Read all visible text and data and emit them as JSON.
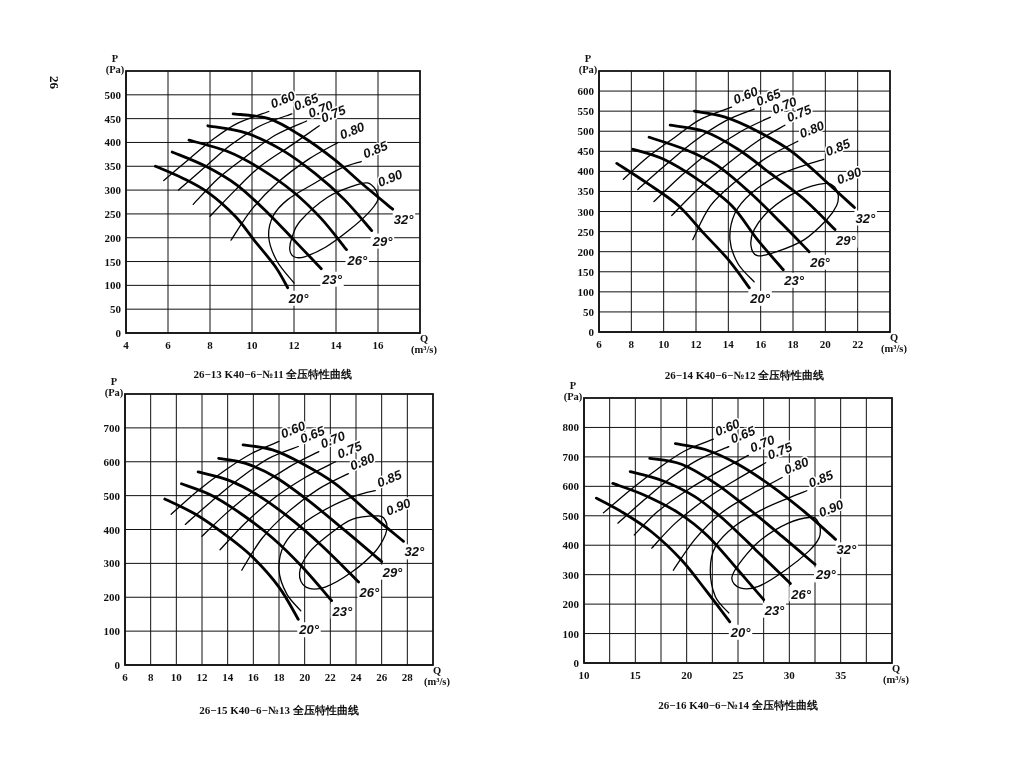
{
  "chart_data": [
    {
      "type": "line",
      "title": "26−13 K40−6−№11 全压特性曲线",
      "xlabel": "Q\n(m³/s)",
      "ylabel": "P\n(Pa)",
      "annotations": [
        "26"
      ],
      "grid": true,
      "xlim": [
        4,
        18
      ],
      "xticks": [
        4,
        6,
        8,
        10,
        12,
        14,
        16
      ],
      "ylim": [
        0,
        550
      ],
      "yticks": [
        0,
        50,
        100,
        150,
        200,
        250,
        300,
        350,
        400,
        450,
        500
      ],
      "series": [
        {
          "name": "20°",
          "color": "#000000",
          "x": [
            5.4,
            6.7,
            7.9,
            9.2,
            10.1,
            11.1,
            11.7
          ],
          "values": [
            350,
            325,
            295,
            245,
            195,
            140,
            95
          ]
        },
        {
          "name": "23°",
          "color": "#000000",
          "x": [
            6.2,
            7.8,
            9.3,
            10.8,
            12.0,
            13.3
          ],
          "values": [
            380,
            350,
            310,
            250,
            195,
            135
          ]
        },
        {
          "name": "26°",
          "color": "#000000",
          "x": [
            7.0,
            8.9,
            10.4,
            12.0,
            13.3,
            14.5
          ],
          "values": [
            405,
            380,
            345,
            295,
            240,
            175
          ]
        },
        {
          "name": "29°",
          "color": "#000000",
          "x": [
            7.9,
            9.7,
            11.4,
            13.0,
            14.4,
            15.7
          ],
          "values": [
            435,
            420,
            385,
            335,
            280,
            215
          ]
        },
        {
          "name": "32°",
          "color": "#000000",
          "x": [
            9.1,
            10.8,
            12.3,
            13.9,
            15.2,
            16.7
          ],
          "values": [
            460,
            450,
            415,
            365,
            315,
            260
          ]
        },
        {
          "name": "0.60",
          "color": "#000000",
          "x": [
            5.8,
            7.0,
            8.1,
            9.3,
            10.8
          ],
          "values": [
            320,
            365,
            405,
            440,
            465
          ]
        },
        {
          "name": "0.65",
          "color": "#000000",
          "x": [
            6.5,
            7.8,
            9.0,
            10.4,
            11.9
          ],
          "values": [
            300,
            350,
            395,
            435,
            460
          ]
        },
        {
          "name": "0.70",
          "color": "#000000",
          "x": [
            7.2,
            8.4,
            9.7,
            11.1,
            12.6
          ],
          "values": [
            270,
            325,
            370,
            415,
            445
          ]
        },
        {
          "name": "0.75",
          "color": "#000000",
          "x": [
            8.0,
            9.2,
            10.4,
            11.9,
            13.2
          ],
          "values": [
            245,
            300,
            350,
            395,
            435
          ]
        },
        {
          "name": "0.80",
          "color": "#000000",
          "x": [
            9.0,
            10.0,
            11.2,
            12.7,
            14.1
          ],
          "values": [
            195,
            260,
            315,
            365,
            400
          ]
        },
        {
          "name": "0.85",
          "color": "#000000",
          "x": [
            12.0,
            11.2,
            10.8,
            11.0,
            11.7,
            13.0,
            14.2,
            15.2
          ],
          "values": [
            105,
            150,
            200,
            245,
            280,
            315,
            345,
            360
          ]
        },
        {
          "name": "0.90",
          "color": "#000000",
          "x": [
            16.0,
            15.9,
            15.5,
            14.9,
            13.6,
            12.3,
            11.9,
            11.8,
            12.0,
            12.5,
            13.5,
            14.6,
            15.5,
            16.0,
            15.9
          ],
          "values": [
            280,
            300,
            315,
            310,
            285,
            235,
            200,
            175,
            160,
            160,
            180,
            215,
            250,
            280,
            300
          ]
        }
      ]
    },
    {
      "type": "line",
      "title": "26−14 K40−6−№12 全压特性曲线",
      "xlabel": "Q\n(m³/s)",
      "ylabel": "P\n(Pa)",
      "grid": true,
      "xlim": [
        6,
        24
      ],
      "xticks": [
        6,
        8,
        10,
        12,
        14,
        16,
        18,
        20,
        22
      ],
      "ylim": [
        0,
        650
      ],
      "yticks": [
        0,
        50,
        100,
        150,
        200,
        250,
        300,
        350,
        400,
        450,
        500,
        550,
        600
      ],
      "series": [
        {
          "name": "20°",
          "color": "#000000",
          "x": [
            7.1,
            9.0,
            10.9,
            12.5,
            14.0,
            15.3
          ],
          "values": [
            420,
            370,
            315,
            245,
            180,
            110
          ]
        },
        {
          "name": "23°",
          "color": "#000000",
          "x": [
            8.1,
            10.0,
            12.1,
            14.2,
            15.8,
            17.4
          ],
          "values": [
            455,
            430,
            380,
            315,
            230,
            155
          ]
        },
        {
          "name": "26°",
          "color": "#000000",
          "x": [
            9.1,
            11.3,
            13.3,
            15.4,
            17.3,
            19.0
          ],
          "values": [
            485,
            455,
            415,
            345,
            270,
            200
          ]
        },
        {
          "name": "29°",
          "color": "#000000",
          "x": [
            10.4,
            12.5,
            14.6,
            16.6,
            18.7,
            20.6
          ],
          "values": [
            515,
            500,
            455,
            395,
            330,
            255
          ]
        },
        {
          "name": "32°",
          "color": "#000000",
          "x": [
            11.9,
            13.8,
            15.8,
            17.9,
            19.9,
            21.8
          ],
          "values": [
            550,
            535,
            500,
            450,
            380,
            310
          ]
        },
        {
          "name": "0.60",
          "color": "#000000",
          "x": [
            7.5,
            9.0,
            10.7,
            12.3,
            14.2
          ],
          "values": [
            380,
            435,
            485,
            530,
            560
          ]
        },
        {
          "name": "0.65",
          "color": "#000000",
          "x": [
            8.4,
            10.1,
            11.9,
            13.8,
            15.6
          ],
          "values": [
            355,
            415,
            475,
            525,
            555
          ]
        },
        {
          "name": "0.70",
          "color": "#000000",
          "x": [
            9.4,
            11.1,
            12.9,
            14.8,
            16.6
          ],
          "values": [
            325,
            390,
            450,
            500,
            535
          ]
        },
        {
          "name": "0.75",
          "color": "#000000",
          "x": [
            10.5,
            12.1,
            14.0,
            15.8,
            17.5
          ],
          "values": [
            290,
            355,
            420,
            475,
            515
          ]
        },
        {
          "name": "0.80",
          "color": "#000000",
          "x": [
            11.8,
            12.9,
            14.6,
            16.4,
            18.3
          ],
          "values": [
            230,
            315,
            380,
            435,
            475
          ]
        },
        {
          "name": "0.85",
          "color": "#000000",
          "x": [
            15.6,
            14.6,
            14.1,
            14.4,
            15.4,
            17.1,
            18.7,
            19.9
          ],
          "values": [
            125,
            170,
            230,
            295,
            345,
            390,
            415,
            430
          ]
        },
        {
          "name": "0.90",
          "color": "#000000",
          "x": [
            20.8,
            20.6,
            20.0,
            18.3,
            16.6,
            15.6,
            15.4,
            15.8,
            17.0,
            18.7,
            20.1,
            20.7,
            20.8,
            20.6
          ],
          "values": [
            340,
            360,
            370,
            350,
            305,
            255,
            215,
            190,
            200,
            230,
            280,
            315,
            340,
            360
          ]
        }
      ]
    },
    {
      "type": "line",
      "title": "26−15 K40−6−№13 全压特性曲线",
      "xlabel": "Q\n(m³/s)",
      "ylabel": "P\n(Pa)",
      "grid": true,
      "xlim": [
        6,
        30
      ],
      "xticks": [
        6,
        8,
        10,
        12,
        14,
        16,
        18,
        20,
        22,
        24,
        26,
        28
      ],
      "ylim": [
        0,
        800
      ],
      "yticks": [
        0,
        100,
        200,
        300,
        400,
        500,
        600,
        700
      ],
      "series": [
        {
          "name": "20°",
          "color": "#000000",
          "x": [
            9.1,
            11.5,
            13.8,
            15.9,
            18.0,
            19.5
          ],
          "values": [
            490,
            445,
            385,
            320,
            230,
            135
          ]
        },
        {
          "name": "23°",
          "color": "#000000",
          "x": [
            10.4,
            12.8,
            15.1,
            17.5,
            19.8,
            22.1
          ],
          "values": [
            535,
            500,
            445,
            375,
            290,
            190
          ]
        },
        {
          "name": "26°",
          "color": "#000000",
          "x": [
            11.7,
            14.1,
            16.4,
            18.8,
            21.4,
            24.2
          ],
          "values": [
            570,
            545,
            500,
            435,
            350,
            245
          ]
        },
        {
          "name": "29°",
          "color": "#000000",
          "x": [
            13.3,
            15.4,
            17.7,
            20.3,
            23.2,
            26.0
          ],
          "values": [
            610,
            595,
            555,
            485,
            395,
            305
          ]
        },
        {
          "name": "32°",
          "color": "#000000",
          "x": [
            15.2,
            17.5,
            19.8,
            22.4,
            25.0,
            27.7
          ],
          "values": [
            650,
            635,
            595,
            535,
            450,
            365
          ]
        },
        {
          "name": "0.60",
          "color": "#000000",
          "x": [
            9.6,
            11.7,
            13.8,
            15.9,
            18.0
          ],
          "values": [
            445,
            515,
            575,
            625,
            660
          ]
        },
        {
          "name": "0.65",
          "color": "#000000",
          "x": [
            10.7,
            12.8,
            14.9,
            17.2,
            19.5
          ],
          "values": [
            415,
            485,
            550,
            610,
            645
          ]
        },
        {
          "name": "0.70",
          "color": "#000000",
          "x": [
            12.0,
            14.1,
            16.4,
            18.8,
            21.1
          ],
          "values": [
            380,
            455,
            525,
            585,
            630
          ]
        },
        {
          "name": "0.75",
          "color": "#000000",
          "x": [
            13.4,
            15.4,
            17.7,
            20.1,
            22.4
          ],
          "values": [
            340,
            420,
            495,
            555,
            600
          ]
        },
        {
          "name": "0.80",
          "color": "#000000",
          "x": [
            15.1,
            16.7,
            18.8,
            21.1,
            23.4
          ],
          "values": [
            280,
            375,
            455,
            520,
            565
          ]
        },
        {
          "name": "0.85",
          "color": "#000000",
          "x": [
            19.7,
            18.6,
            18.0,
            18.4,
            19.8,
            21.9,
            24.0,
            25.5
          ],
          "values": [
            160,
            210,
            280,
            355,
            415,
            465,
            500,
            515
          ]
        },
        {
          "name": "0.90",
          "color": "#000000",
          "x": [
            26.4,
            26.2,
            25.7,
            23.7,
            21.9,
            20.3,
            19.6,
            20.1,
            21.6,
            23.7,
            25.5,
            26.3,
            26.4,
            26.2
          ],
          "values": [
            415,
            432,
            440,
            430,
            385,
            330,
            270,
            230,
            230,
            275,
            335,
            385,
            415,
            432
          ]
        }
      ]
    },
    {
      "type": "line",
      "title": "26−16 K40−6−№14 全压特性曲线",
      "xlabel": "Q\n(m³/s)",
      "ylabel": "P\n(Pa)",
      "grid": true,
      "xlim": [
        10,
        40
      ],
      "xticks": [
        10,
        {
          "value": 12.5,
          "label": null
        },
        15,
        {
          "value": 17.5,
          "label": null
        },
        20,
        {
          "value": 22.5,
          "label": null
        },
        25,
        {
          "value": 27.5,
          "label": null
        },
        30,
        {
          "value": 32.5,
          "label": null
        },
        35,
        {
          "value": 37.5,
          "label": null
        }
      ],
      "ylim": [
        0,
        900
      ],
      "yticks": [
        0,
        100,
        200,
        300,
        400,
        500,
        600,
        700,
        800
      ],
      "series": [
        {
          "name": "20°",
          "color": "#000000",
          "x": [
            11.2,
            13.6,
            16.6,
            19.5,
            21.8,
            24.2
          ],
          "values": [
            560,
            515,
            445,
            350,
            250,
            140
          ]
        },
        {
          "name": "23°",
          "color": "#000000",
          "x": [
            12.8,
            15.9,
            19.2,
            22.1,
            24.9,
            27.5
          ],
          "values": [
            610,
            570,
            510,
            430,
            320,
            215
          ]
        },
        {
          "name": "26°",
          "color": "#000000",
          "x": [
            14.5,
            17.6,
            20.8,
            23.7,
            26.7,
            30.1
          ],
          "values": [
            650,
            620,
            565,
            485,
            385,
            270
          ]
        },
        {
          "name": "29°",
          "color": "#000000",
          "x": [
            16.4,
            19.5,
            22.8,
            26.0,
            29.3,
            32.5
          ],
          "values": [
            695,
            675,
            610,
            525,
            430,
            335
          ]
        },
        {
          "name": "32°",
          "color": "#000000",
          "x": [
            18.9,
            21.8,
            25.0,
            28.3,
            31.6,
            34.5
          ],
          "values": [
            745,
            725,
            675,
            600,
            510,
            420
          ]
        },
        {
          "name": "0.60",
          "color": "#000000",
          "x": [
            11.9,
            14.6,
            17.2,
            19.8,
            22.6
          ],
          "values": [
            510,
            590,
            660,
            720,
            760
          ]
        },
        {
          "name": "0.65",
          "color": "#000000",
          "x": [
            13.3,
            15.9,
            18.5,
            21.1,
            24.1
          ],
          "values": [
            475,
            555,
            630,
            690,
            735
          ]
        },
        {
          "name": "0.70",
          "color": "#000000",
          "x": [
            14.9,
            17.2,
            20.2,
            23.1,
            26.0
          ],
          "values": [
            435,
            515,
            590,
            650,
            705
          ]
        },
        {
          "name": "0.75",
          "color": "#000000",
          "x": [
            16.6,
            18.9,
            21.8,
            24.7,
            27.7
          ],
          "values": [
            390,
            475,
            555,
            620,
            680
          ]
        },
        {
          "name": "0.80",
          "color": "#000000",
          "x": [
            18.7,
            20.8,
            23.4,
            26.4,
            29.3
          ],
          "values": [
            315,
            420,
            510,
            575,
            630
          ]
        },
        {
          "name": "0.85",
          "color": "#000000",
          "x": [
            24.1,
            22.8,
            22.3,
            22.8,
            24.7,
            27.3,
            29.9,
            31.7
          ],
          "values": [
            170,
            225,
            315,
            395,
            465,
            520,
            560,
            585
          ]
        },
        {
          "name": "0.90",
          "color": "#000000",
          "x": [
            33.0,
            32.7,
            32.1,
            29.9,
            27.3,
            25.4,
            24.4,
            25.2,
            27.0,
            29.6,
            31.9,
            32.9,
            33.0,
            32.7
          ],
          "values": [
            460,
            485,
            495,
            475,
            420,
            350,
            290,
            255,
            260,
            315,
            380,
            425,
            460,
            485
          ]
        }
      ]
    }
  ]
}
